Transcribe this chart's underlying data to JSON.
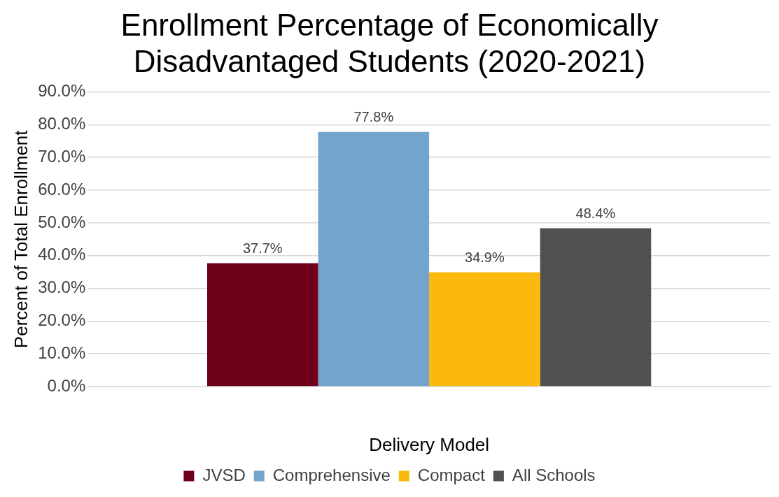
{
  "chart_data": {
    "type": "bar",
    "title": [
      "Enrollment Percentage of Economically",
      "Disadvantaged Students (2020-2021)"
    ],
    "xlabel": "Delivery Model",
    "ylabel": "Percent of Total Enrollment",
    "categories": [
      null
    ],
    "series": [
      {
        "name": "JVSD",
        "color": "#6e0019",
        "values": [
          37.7
        ],
        "value_labels": [
          "37.7%"
        ]
      },
      {
        "name": "Comprehensive",
        "color": "#73a5cc",
        "values": [
          77.8
        ],
        "value_labels": [
          "77.8%"
        ]
      },
      {
        "name": "Compact",
        "color": "#fbb90f",
        "values": [
          34.9
        ],
        "value_labels": [
          "34.9%"
        ]
      },
      {
        "name": "All Schools",
        "color": "#524f50",
        "values": [
          48.4
        ],
        "value_labels": [
          "48.4%"
        ]
      }
    ],
    "ylim": [
      0,
      90
    ],
    "yticks": [
      {
        "value": 0,
        "label": "0.0%"
      },
      {
        "value": 10,
        "label": "10.0%"
      },
      {
        "value": 20,
        "label": "20.0%"
      },
      {
        "value": 30,
        "label": "30.0%"
      },
      {
        "value": 40,
        "label": "40.0%"
      },
      {
        "value": 50,
        "label": "50.0%"
      },
      {
        "value": 60,
        "label": "60.0%"
      },
      {
        "value": 70,
        "label": "70.0%"
      },
      {
        "value": 80,
        "label": "80.0%"
      },
      {
        "value": 90,
        "label": "90.0%"
      }
    ],
    "grid": "y",
    "legend": "bottom"
  }
}
